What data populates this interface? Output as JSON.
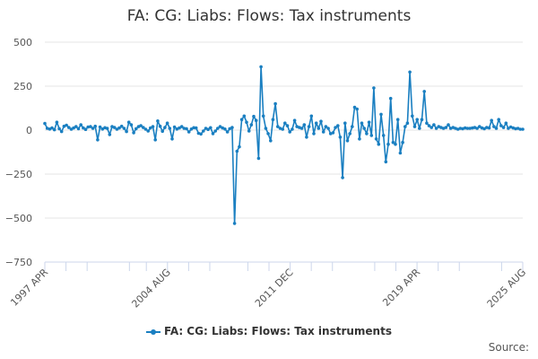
{
  "title": "FA: CG: Liabs: Flows: Tax instruments",
  "source_label": "Source:",
  "colors": {
    "series": "#1a7fc1",
    "grid": "#e6e6e6",
    "axis": "#ccd6eb"
  },
  "chart_data": {
    "type": "line",
    "title": "FA: CG: Liabs: Flows: Tax instruments",
    "xlabel": "",
    "ylabel": "",
    "ylim": [
      -750,
      500
    ],
    "yticks": [
      500,
      250,
      0,
      -250,
      -500,
      -750
    ],
    "ytick_labels": [
      "500",
      "250",
      "0",
      "−250",
      "−500",
      "−750"
    ],
    "xlim": [
      0,
      113
    ],
    "xticks": [
      0,
      29,
      58,
      88,
      113
    ],
    "xtick_labels": [
      "1997 APR",
      "2004 AUG",
      "2011 DEC",
      "2019 APR",
      "2025 AUG"
    ],
    "x_minor_ticks": [
      5,
      10,
      20,
      24,
      34,
      39,
      48,
      53,
      63,
      68,
      78,
      83,
      93,
      98,
      108
    ],
    "grid": true,
    "legend_position": "bottom",
    "series": [
      {
        "name": "FA: CG: Liabs: Flows: Tax instruments",
        "values": [
          38,
          10,
          6,
          12,
          2,
          45,
          8,
          -8,
          22,
          28,
          15,
          5,
          12,
          20,
          8,
          30,
          12,
          4,
          18,
          20,
          10,
          22,
          -55,
          18,
          6,
          14,
          10,
          -25,
          20,
          15,
          5,
          12,
          22,
          10,
          -8,
          45,
          30,
          -15,
          8,
          20,
          25,
          15,
          5,
          -5,
          12,
          20,
          -55,
          52,
          22,
          -6,
          15,
          40,
          10,
          -50,
          18,
          6,
          12,
          20,
          10,
          8,
          -10,
          6,
          14,
          12,
          -18,
          -22,
          -5,
          10,
          4,
          14,
          -20,
          -5,
          10,
          20,
          12,
          6,
          -10,
          8,
          15,
          -530,
          -120,
          -95,
          60,
          80,
          45,
          -5,
          30,
          78,
          55,
          -160,
          360,
          80,
          10,
          -20,
          -60,
          60,
          150,
          20,
          10,
          5,
          40,
          25,
          -10,
          5,
          55,
          20,
          15,
          10,
          30,
          -40,
          20,
          80,
          -20,
          40,
          10,
          50,
          -10,
          20,
          10,
          -20,
          -15,
          15,
          25,
          -40,
          -270,
          40,
          -60,
          -20,
          20,
          130,
          120,
          -50,
          40,
          10,
          -20,
          45,
          -30,
          240,
          -50,
          -80,
          90,
          -30,
          -180,
          -80,
          180,
          -70,
          -80,
          60,
          -130,
          -70,
          20,
          40,
          330,
          80,
          20,
          60,
          10,
          60,
          220,
          40,
          25,
          15,
          30,
          10,
          20,
          15,
          10,
          15,
          30,
          10,
          15,
          10,
          5,
          10,
          8,
          12,
          10,
          10,
          12,
          15,
          10,
          20,
          12,
          8,
          15,
          12,
          55,
          20,
          10,
          60,
          25,
          15,
          40,
          10,
          18,
          12,
          8,
          10,
          5,
          5
        ]
      }
    ]
  }
}
